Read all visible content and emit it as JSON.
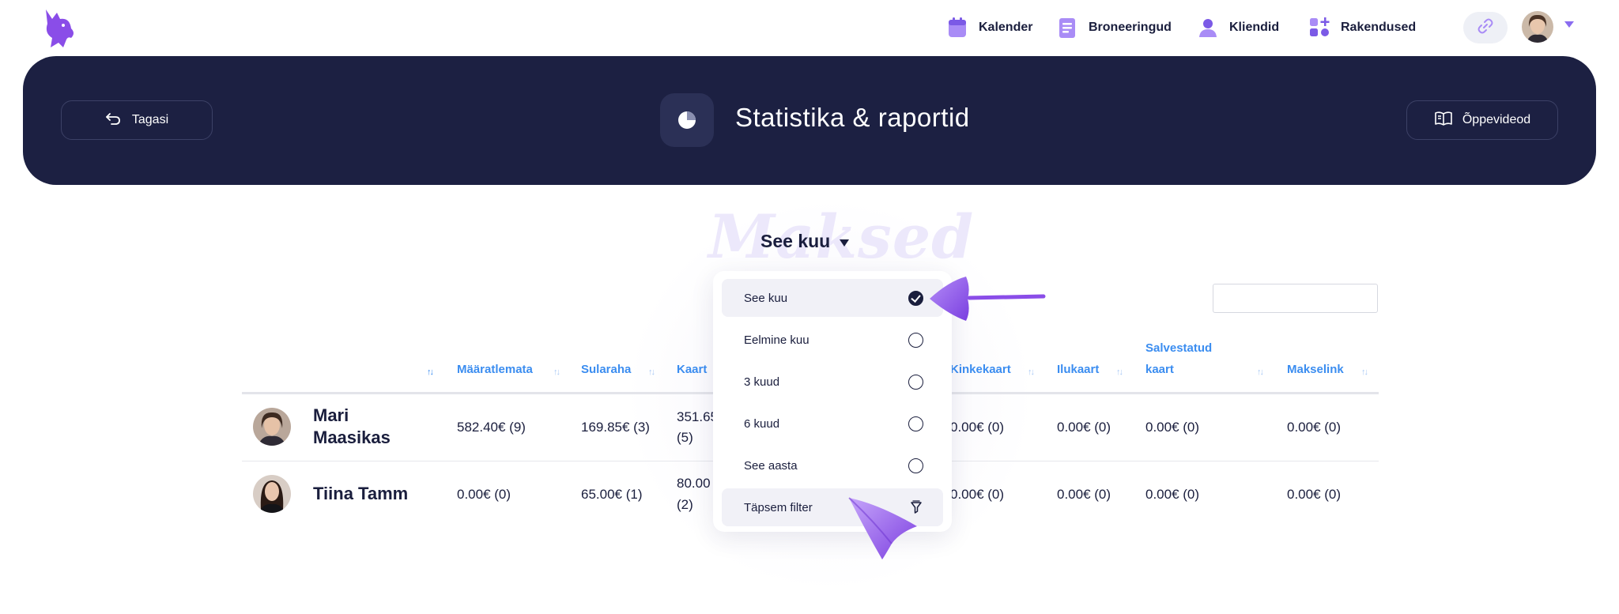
{
  "nav": {
    "items": [
      {
        "label": "Kalender",
        "icon": "calendar-icon"
      },
      {
        "label": "Broneeringud",
        "icon": "bookings-icon"
      },
      {
        "label": "Kliendid",
        "icon": "clients-icon"
      },
      {
        "label": "Rakendused",
        "icon": "apps-icon"
      }
    ],
    "accent": "#8a6cf0"
  },
  "header": {
    "back_label": "Tagasi",
    "title": "Statistika & raportid",
    "videos_label": "Õppevideod",
    "background": "#1c2042"
  },
  "page": {
    "watermark": "Maksed",
    "period_label": "See kuu",
    "search_value": ""
  },
  "table": {
    "columns": [
      "Määratlemata",
      "Sularaha",
      "Kaart",
      "Kinkekaart",
      "Ilukaart",
      "Salvestatud kaart",
      "Makselink"
    ],
    "saved_card_line1": "Salvestatud",
    "saved_card_line2": "kaart",
    "rows": [
      {
        "name_line1": "Mari",
        "name_line2": "Maasikas",
        "undefined": "582.40€ (9)",
        "cash": "169.85€ (3)",
        "card_line1": "351.65",
        "card_line2": "(5)",
        "gift": "0.00€ (0)",
        "beauty": "0.00€ (0)",
        "saved": "0.00€ (0)",
        "link": "0.00€ (0)"
      },
      {
        "name": "Tiina Tamm",
        "undefined": "0.00€ (0)",
        "cash": "65.00€ (1)",
        "card_line1": "80.00",
        "card_line2": "(2)",
        "gift": "0.00€ (0)",
        "beauty": "0.00€ (0)",
        "saved": "0.00€ (0)",
        "link": "0.00€ (0)"
      }
    ]
  },
  "dropdown": {
    "options": [
      "See kuu",
      "Eelmine kuu",
      "3 kuud",
      "6 kuud",
      "See aasta"
    ],
    "selected": "See kuu",
    "advanced_label": "Täpsem filter"
  }
}
